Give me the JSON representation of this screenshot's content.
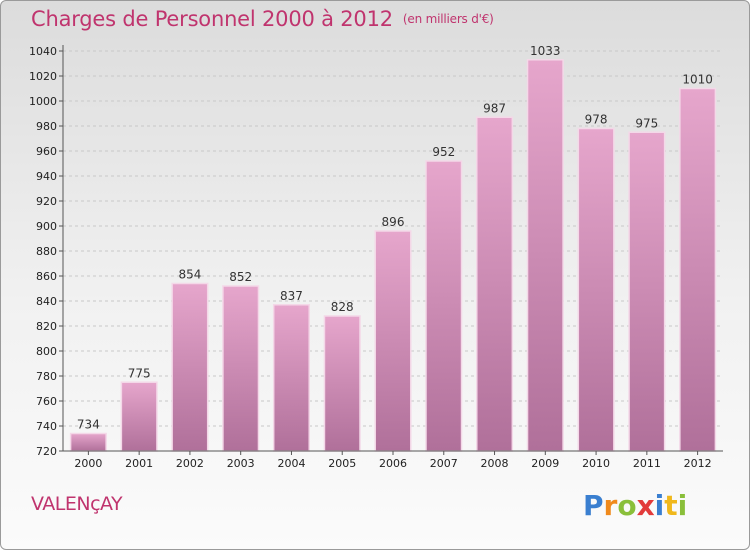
{
  "header": {
    "title": "Charges de Personnel 2000 à 2012",
    "subtitle": "(en milliers d'€)"
  },
  "footer": {
    "commune": "VALENçAY",
    "logo": "Proxiti"
  },
  "colors": {
    "title": "#c0346e",
    "bar_top": "#e6a6cc",
    "bar_bottom": "#b0709a",
    "logo_letters": [
      "#3a7fd0",
      "#f08a1c",
      "#8abf3a",
      "#e23a3a",
      "#3a7fd0",
      "#f0b81c",
      "#8abf3a"
    ]
  },
  "chart_data": {
    "type": "bar",
    "title": "Charges de Personnel 2000 à 2012",
    "categories": [
      "2000",
      "2001",
      "2002",
      "2003",
      "2004",
      "2005",
      "2006",
      "2007",
      "2008",
      "2009",
      "2010",
      "2011",
      "2012"
    ],
    "values": [
      734,
      775,
      854,
      852,
      837,
      828,
      896,
      952,
      987,
      1033,
      978,
      975,
      1010
    ],
    "ylim": [
      720,
      1040
    ],
    "yticks": [
      720,
      740,
      760,
      780,
      800,
      820,
      840,
      860,
      880,
      900,
      920,
      940,
      960,
      980,
      1000,
      1020,
      1040
    ],
    "grid": "horizontal-dashed",
    "xlabel": "",
    "ylabel": ""
  }
}
